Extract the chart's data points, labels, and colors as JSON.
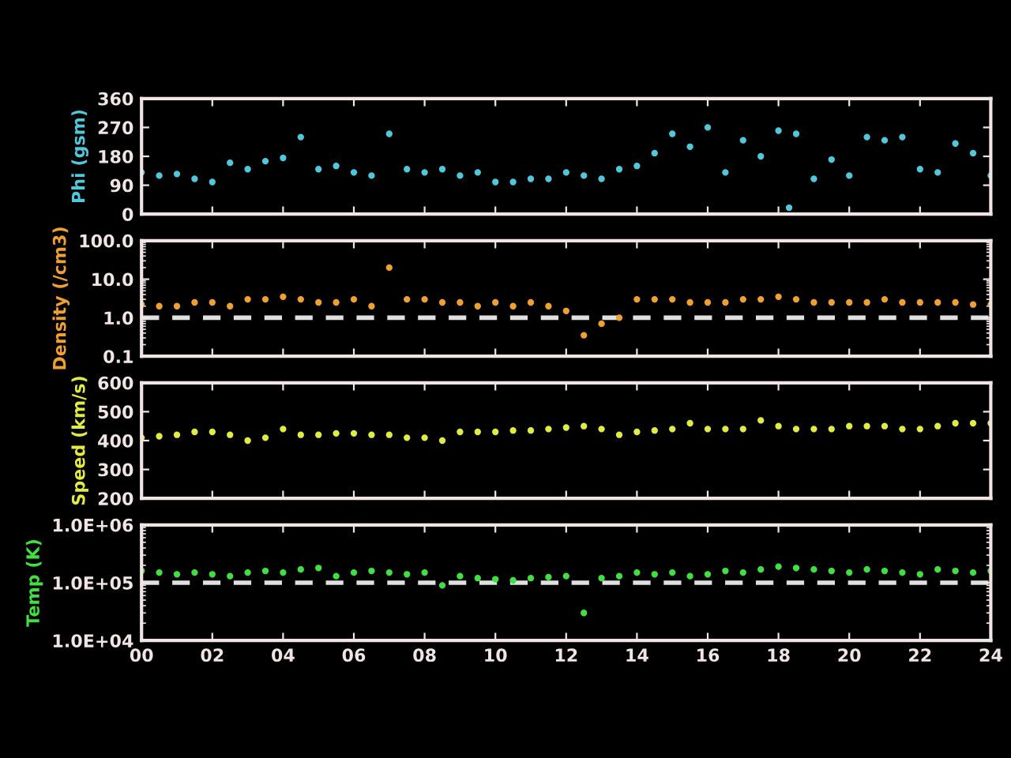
{
  "chart_data": [
    {
      "type": "scatter",
      "ylabel": "Phi (gsm)",
      "tick_labels": "y",
      "marker": "circle",
      "xlim": [
        0,
        24
      ],
      "ylim": [
        0,
        360
      ],
      "yticks": [
        0,
        90,
        180,
        270,
        360
      ],
      "x": [
        0,
        0.5,
        1,
        1.5,
        2,
        2.5,
        3,
        3.5,
        4,
        4.5,
        5,
        5.5,
        6,
        6.5,
        7,
        7.5,
        8,
        8.5,
        9,
        9.5,
        10,
        10.5,
        11,
        11.5,
        12,
        12.5,
        13,
        13.5,
        14,
        14.5,
        15,
        15.5,
        16,
        16.5,
        17,
        17.5,
        18,
        18.3,
        18.5,
        19,
        19.5,
        20,
        20.5,
        21,
        21.5,
        22,
        22.5,
        23,
        23.5,
        24
      ],
      "series": [
        {
          "color": "#4fc8dc",
          "values": [
            130,
            120,
            125,
            110,
            100,
            160,
            140,
            165,
            175,
            240,
            140,
            150,
            130,
            120,
            250,
            140,
            130,
            140,
            120,
            130,
            100,
            100,
            110,
            110,
            130,
            120,
            110,
            140,
            150,
            190,
            250,
            210,
            270,
            130,
            230,
            180,
            260,
            20,
            250,
            110,
            170,
            120,
            240,
            230,
            240,
            140,
            130,
            220,
            190,
            120
          ]
        }
      ]
    },
    {
      "type": "scatter",
      "ylabel": "Density (/cm3)",
      "tick_labels": "y",
      "marker": "circle",
      "log": "y",
      "xlim": [
        0,
        24
      ],
      "ylim": [
        0.1,
        100
      ],
      "yticks": [
        0.1,
        {
          "value": 1,
          "label": "1.0"
        },
        {
          "value": 10,
          "label": "10.0"
        },
        {
          "value": 100,
          "label": "100.0"
        }
      ],
      "ref_lines": [
        {
          "axis": "y",
          "value": 1,
          "color": "#e0e0e0",
          "line_style": "dashed"
        }
      ],
      "x": [
        0,
        0.5,
        1,
        1.5,
        2,
        2.5,
        3,
        3.5,
        4,
        4.5,
        5,
        5.5,
        6,
        6.5,
        7,
        7.5,
        8,
        8.5,
        9,
        9.5,
        10,
        10.5,
        11,
        11.5,
        12,
        12.5,
        13,
        13.5,
        14,
        14.5,
        15,
        15.5,
        16,
        16.5,
        17,
        17.5,
        18,
        18.5,
        19,
        19.5,
        20,
        20.5,
        21,
        21.5,
        22,
        22.5,
        23,
        23.5,
        24
      ],
      "series": [
        {
          "color": "#f0a030",
          "values": [
            2.2,
            2,
            2,
            2.5,
            2.5,
            2,
            3,
            3,
            3.5,
            3,
            2.5,
            2.5,
            3,
            2,
            20,
            3,
            3,
            2.5,
            2.5,
            2,
            2.5,
            2,
            2.5,
            2,
            1.5,
            0.35,
            0.7,
            1,
            3,
            3,
            3,
            2.5,
            2.5,
            2.5,
            3,
            3,
            3.5,
            3,
            2.5,
            2.5,
            2.5,
            2.5,
            3,
            2.5,
            2.5,
            2.5,
            2.5,
            2.2,
            2.2
          ]
        }
      ]
    },
    {
      "type": "scatter",
      "ylabel": "Speed (km/s)",
      "tick_labels": "y",
      "marker": "circle",
      "xlim": [
        0,
        24
      ],
      "ylim": [
        200,
        600
      ],
      "yticks": [
        200,
        300,
        400,
        500,
        600
      ],
      "x": [
        0,
        0.5,
        1,
        1.5,
        2,
        2.5,
        3,
        3.5,
        4,
        4.5,
        5,
        5.5,
        6,
        6.5,
        7,
        7.5,
        8,
        8.5,
        9,
        9.5,
        10,
        10.5,
        11,
        11.5,
        12,
        12.5,
        13,
        13.5,
        14,
        14.5,
        15,
        15.5,
        16,
        16.5,
        17,
        17.5,
        18,
        18.5,
        19,
        19.5,
        20,
        20.5,
        21,
        21.5,
        22,
        22.5,
        23,
        23.5,
        24
      ],
      "series": [
        {
          "color": "#e0ec40",
          "values": [
            410,
            415,
            420,
            430,
            430,
            420,
            400,
            410,
            440,
            420,
            420,
            425,
            425,
            420,
            420,
            410,
            410,
            400,
            430,
            430,
            430,
            435,
            435,
            440,
            445,
            450,
            440,
            420,
            430,
            435,
            440,
            460,
            440,
            440,
            440,
            470,
            450,
            440,
            440,
            440,
            450,
            450,
            450,
            440,
            440,
            450,
            460,
            460,
            460
          ]
        }
      ]
    },
    {
      "type": "scatter",
      "ylabel": "Temp (K)",
      "marker": "circle",
      "log": "y",
      "xlim": [
        0,
        24
      ],
      "ylim": [
        10000,
        1000000
      ],
      "xticks": [
        {
          "value": 0,
          "label": "00"
        },
        {
          "value": 2,
          "label": "02"
        },
        {
          "value": 4,
          "label": "04"
        },
        {
          "value": 6,
          "label": "06"
        },
        {
          "value": 8,
          "label": "08"
        },
        {
          "value": 10,
          "label": "10"
        },
        {
          "value": 12,
          "label": "12"
        },
        {
          "value": 14,
          "label": "14"
        },
        {
          "value": 16,
          "label": "16"
        },
        {
          "value": 18,
          "label": "18"
        },
        {
          "value": 20,
          "label": "20"
        },
        {
          "value": 22,
          "label": "22"
        },
        {
          "value": 24,
          "label": "24"
        }
      ],
      "yticks": [
        {
          "value": 10000,
          "label": "1.0E+04"
        },
        {
          "value": 100000,
          "label": "1.0E+05"
        },
        {
          "value": 1000000,
          "label": "1.0E+06"
        }
      ],
      "ref_lines": [
        {
          "axis": "y",
          "value": 100000,
          "color": "#e0e0e0",
          "line_style": "dashed"
        }
      ],
      "x": [
        0,
        0.5,
        1,
        1.5,
        2,
        2.5,
        3,
        3.5,
        4,
        4.5,
        5,
        5.5,
        6,
        6.5,
        7,
        7.5,
        8,
        8.5,
        9,
        9.5,
        10,
        10.5,
        11,
        11.5,
        12,
        12.5,
        13,
        13.5,
        14,
        14.5,
        15,
        15.5,
        16,
        16.5,
        17,
        17.5,
        18,
        18.5,
        19,
        19.5,
        20,
        20.5,
        21,
        21.5,
        22,
        22.5,
        23,
        23.5,
        24
      ],
      "series": [
        {
          "color": "#40e040",
          "values": [
            160000,
            150000,
            140000,
            150000,
            140000,
            130000,
            150000,
            160000,
            150000,
            170000,
            180000,
            130000,
            150000,
            160000,
            150000,
            140000,
            150000,
            90000,
            130000,
            120000,
            115000,
            110000,
            120000,
            125000,
            130000,
            30000,
            120000,
            130000,
            150000,
            140000,
            150000,
            130000,
            140000,
            160000,
            150000,
            170000,
            190000,
            180000,
            170000,
            160000,
            150000,
            170000,
            160000,
            150000,
            140000,
            170000,
            160000,
            150000,
            160000
          ]
        }
      ]
    }
  ]
}
